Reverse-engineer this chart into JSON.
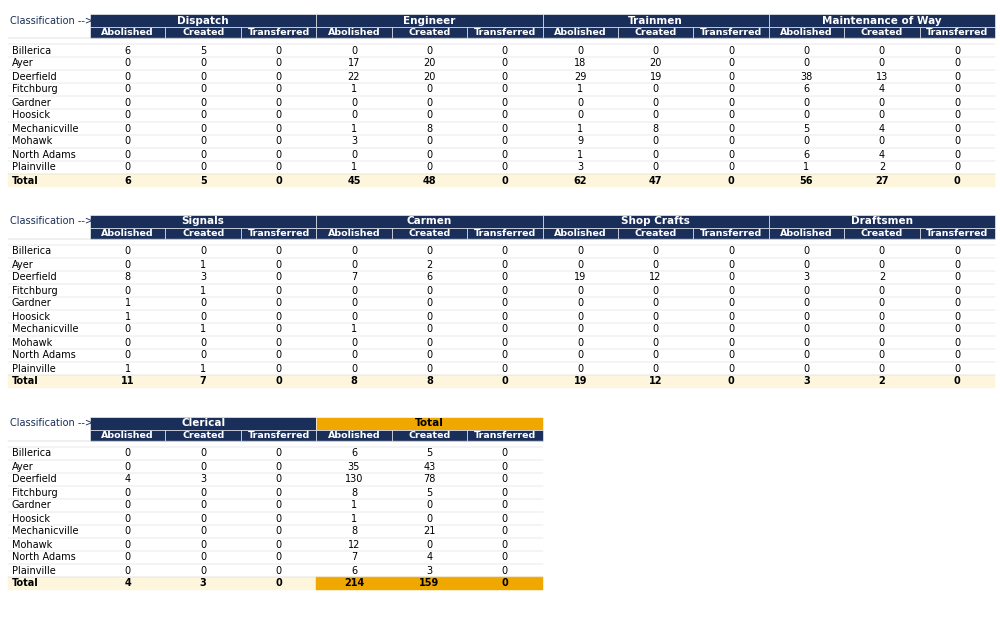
{
  "sections": [
    {
      "groups": [
        "Dispatch",
        "Engineer",
        "Trainmen",
        "Maintenance of Way"
      ],
      "n_groups": 4,
      "data": {
        "Dispatch": {
          "A": [
            6,
            0,
            0,
            0,
            0,
            0,
            0,
            0,
            0,
            0
          ],
          "C": [
            5,
            0,
            0,
            0,
            0,
            0,
            0,
            0,
            0,
            0
          ],
          "T": [
            0,
            0,
            0,
            0,
            0,
            0,
            0,
            0,
            0,
            0
          ],
          "TA": 6,
          "TC": 5,
          "TT": 0
        },
        "Engineer": {
          "A": [
            0,
            17,
            22,
            1,
            0,
            0,
            1,
            3,
            0,
            1
          ],
          "C": [
            0,
            20,
            20,
            0,
            0,
            0,
            8,
            0,
            0,
            0
          ],
          "T": [
            0,
            0,
            0,
            0,
            0,
            0,
            0,
            0,
            0,
            0
          ],
          "TA": 45,
          "TC": 48,
          "TT": 0
        },
        "Trainmen": {
          "A": [
            0,
            18,
            29,
            1,
            0,
            0,
            1,
            9,
            1,
            3
          ],
          "C": [
            0,
            20,
            19,
            0,
            0,
            0,
            8,
            0,
            0,
            0
          ],
          "T": [
            0,
            0,
            0,
            0,
            0,
            0,
            0,
            0,
            0,
            0
          ],
          "TA": 62,
          "TC": 47,
          "TT": 0
        },
        "Maintenance of Way": {
          "A": [
            0,
            0,
            38,
            6,
            0,
            0,
            5,
            0,
            6,
            1
          ],
          "C": [
            0,
            0,
            13,
            4,
            0,
            0,
            4,
            0,
            4,
            2
          ],
          "T": [
            0,
            0,
            0,
            0,
            0,
            0,
            0,
            0,
            0,
            0
          ],
          "TA": 56,
          "TC": 27,
          "TT": 0
        }
      }
    },
    {
      "groups": [
        "Signals",
        "Carmen",
        "Shop Crafts",
        "Draftsmen"
      ],
      "n_groups": 4,
      "data": {
        "Signals": {
          "A": [
            0,
            0,
            8,
            0,
            1,
            1,
            0,
            0,
            0,
            1
          ],
          "C": [
            0,
            1,
            3,
            1,
            0,
            0,
            1,
            0,
            0,
            1
          ],
          "T": [
            0,
            0,
            0,
            0,
            0,
            0,
            0,
            0,
            0,
            0
          ],
          "TA": 11,
          "TC": 7,
          "TT": 0
        },
        "Carmen": {
          "A": [
            0,
            0,
            7,
            0,
            0,
            0,
            1,
            0,
            0,
            0
          ],
          "C": [
            0,
            2,
            6,
            0,
            0,
            0,
            0,
            0,
            0,
            0
          ],
          "T": [
            0,
            0,
            0,
            0,
            0,
            0,
            0,
            0,
            0,
            0
          ],
          "TA": 8,
          "TC": 8,
          "TT": 0
        },
        "Shop Crafts": {
          "A": [
            0,
            0,
            19,
            0,
            0,
            0,
            0,
            0,
            0,
            0
          ],
          "C": [
            0,
            0,
            12,
            0,
            0,
            0,
            0,
            0,
            0,
            0
          ],
          "T": [
            0,
            0,
            0,
            0,
            0,
            0,
            0,
            0,
            0,
            0
          ],
          "TA": 19,
          "TC": 12,
          "TT": 0
        },
        "Draftsmen": {
          "A": [
            0,
            0,
            3,
            0,
            0,
            0,
            0,
            0,
            0,
            0
          ],
          "C": [
            0,
            0,
            2,
            0,
            0,
            0,
            0,
            0,
            0,
            0
          ],
          "T": [
            0,
            0,
            0,
            0,
            0,
            0,
            0,
            0,
            0,
            0
          ],
          "TA": 3,
          "TC": 2,
          "TT": 0
        }
      }
    },
    {
      "groups": [
        "Clerical",
        "Total"
      ],
      "n_groups": 2,
      "data": {
        "Clerical": {
          "A": [
            0,
            0,
            4,
            0,
            0,
            0,
            0,
            0,
            0,
            0
          ],
          "C": [
            0,
            0,
            3,
            0,
            0,
            0,
            0,
            0,
            0,
            0
          ],
          "T": [
            0,
            0,
            0,
            0,
            0,
            0,
            0,
            0,
            0,
            0
          ],
          "TA": 4,
          "TC": 3,
          "TT": 0
        },
        "Total": {
          "A": [
            6,
            35,
            130,
            8,
            1,
            1,
            8,
            12,
            7,
            6
          ],
          "C": [
            5,
            43,
            78,
            5,
            0,
            0,
            21,
            0,
            4,
            3
          ],
          "T": [
            0,
            0,
            0,
            0,
            0,
            0,
            0,
            0,
            0,
            0
          ],
          "TA": 214,
          "TC": 159,
          "TT": 0
        }
      }
    }
  ],
  "locations": [
    "Billerica",
    "Ayer",
    "Deerfield",
    "Fitchburg",
    "Gardner",
    "Hoosick",
    "Mechanicville",
    "Mohawk",
    "North Adams",
    "Plainville"
  ],
  "subcols": [
    "Abolished",
    "Created",
    "Transferred"
  ],
  "dark_blue": "#1a2e5a",
  "gold": "#f0a800",
  "total_row_bg": "#fdf5dc",
  "total_gold_bg": "#f0a800",
  "bg_color": "#ffffff",
  "label_color": "#1a2e5a",
  "font_size_cat": 7.5,
  "font_size_sub": 6.8,
  "font_size_data": 7.0,
  "font_size_classify": 7.0
}
